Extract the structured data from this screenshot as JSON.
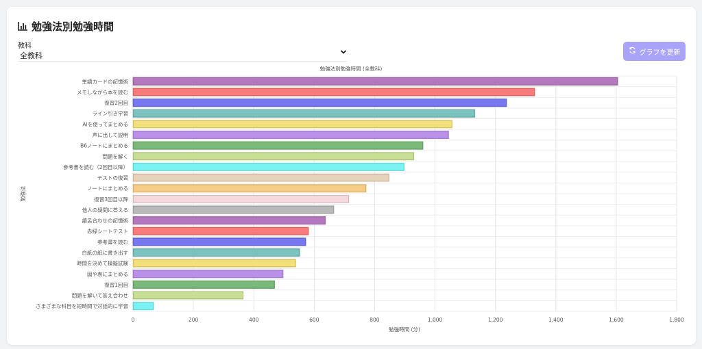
{
  "header": {
    "title": "勉強法別勉強時間",
    "title_icon": "bar-chart-icon"
  },
  "filter": {
    "label": "教科",
    "selected": "全教科"
  },
  "refresh_button": {
    "label": "グラフを更新",
    "icon": "refresh-icon"
  },
  "chart_data": {
    "type": "bar",
    "orientation": "horizontal",
    "title": "勉強法別勉強時間 (全教科)",
    "xlabel": "勉強時間 (分)",
    "ylabel": "勉強法",
    "xlim": [
      0,
      1800
    ],
    "xticks": [
      0,
      200,
      400,
      600,
      800,
      1000,
      1200,
      1400,
      1600,
      1800
    ],
    "xtick_labels": [
      "0",
      "200",
      "400",
      "600",
      "800",
      "1,000",
      "1,200",
      "1,400",
      "1,600",
      "1,800"
    ],
    "grid": true,
    "categories": [
      "単語カードの記憶術",
      "メモしながら本を読む",
      "復習2回目",
      "ライン引き学習",
      "AIを使ってまとめる",
      "声に出して説明",
      "B6ノートにまとめる",
      "問題を解く",
      "参考書を読む（2回目以降）",
      "テストの復習",
      "ノートにまとめる",
      "復習3回目以降",
      "他人の疑問に答える",
      "語呂合わせの記憶術",
      "赤緑シートテスト",
      "参考書を読む",
      "白紙の紙に書き出す",
      "時間を決めて模擬試験",
      "図や表にまとめる",
      "復習1回目",
      "問題を解いて答え合わせ",
      "さまざまな科目を短時間で対話的に学習"
    ],
    "values": [
      1605,
      1330,
      1237,
      1132,
      1057,
      1045,
      960,
      930,
      898,
      848,
      772,
      715,
      665,
      637,
      581,
      572,
      552,
      539,
      497,
      469,
      365,
      68
    ],
    "colors": [
      "#b97cc4",
      "#ff7f7f",
      "#7b7bf7",
      "#7fc9c4",
      "#fce77f",
      "#c194f0",
      "#7fbf7f",
      "#cfe69a",
      "#7ffbfb",
      "#eed8c2",
      "#fdd38a",
      "#fde1e4",
      "#bfbfbf",
      "#b97cc4",
      "#ff7f7f",
      "#7b7bf7",
      "#7fc9c4",
      "#fce77f",
      "#c194f0",
      "#7fbf7f",
      "#cfe69a",
      "#7ffbfb"
    ]
  }
}
